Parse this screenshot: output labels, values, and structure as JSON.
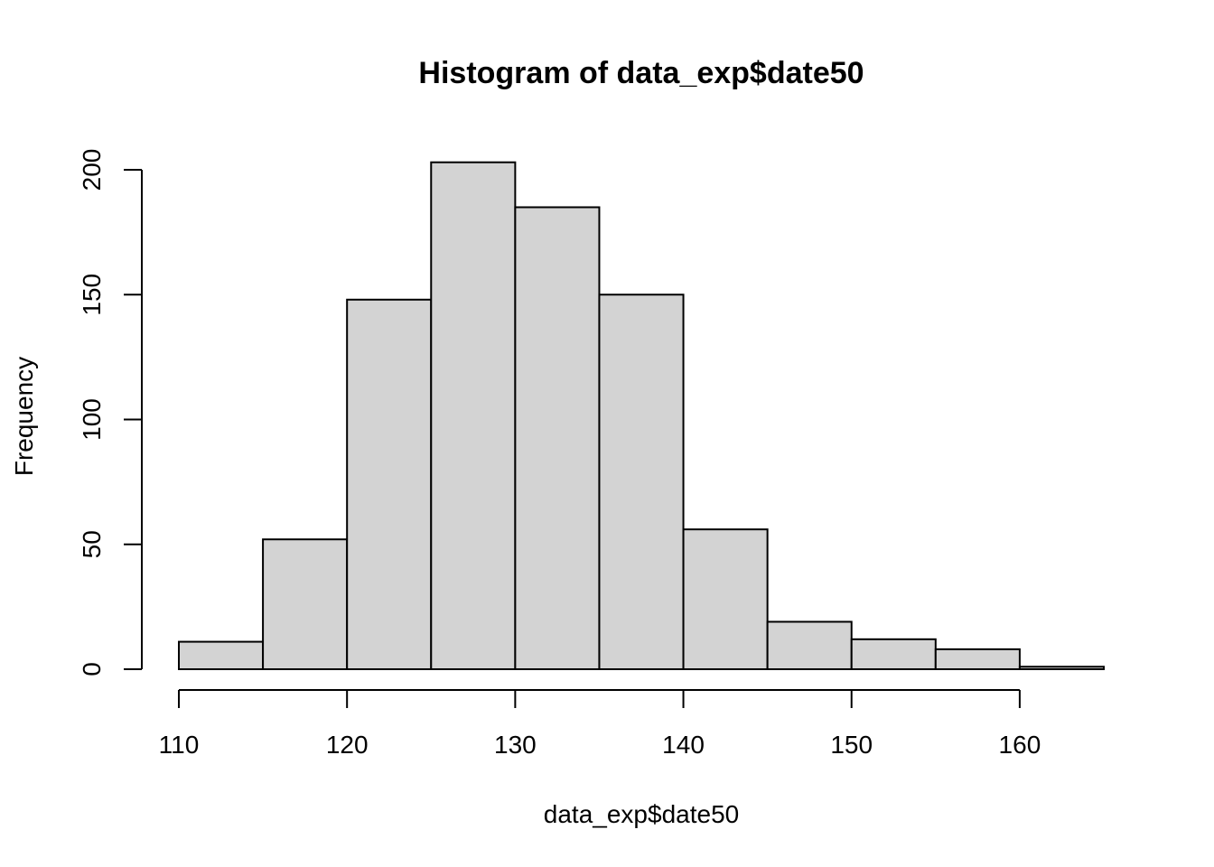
{
  "chart_data": {
    "type": "bar",
    "title": "Histogram of data_exp$date50",
    "xlabel": "data_exp$date50",
    "ylabel": "Frequency",
    "bin_edges": [
      110,
      115,
      120,
      125,
      130,
      135,
      140,
      145,
      150,
      155,
      160,
      165
    ],
    "values": [
      11,
      52,
      148,
      203,
      185,
      150,
      56,
      19,
      12,
      8,
      1
    ],
    "xticks": [
      110,
      120,
      130,
      140,
      150,
      160
    ],
    "yticks": [
      0,
      50,
      100,
      150,
      200
    ],
    "xlim": [
      110,
      165
    ],
    "ylim": [
      0,
      200
    ],
    "grid": false,
    "colors": {
      "bar_fill": "#d3d3d3",
      "bar_stroke": "#000000",
      "axis": "#000000"
    }
  }
}
